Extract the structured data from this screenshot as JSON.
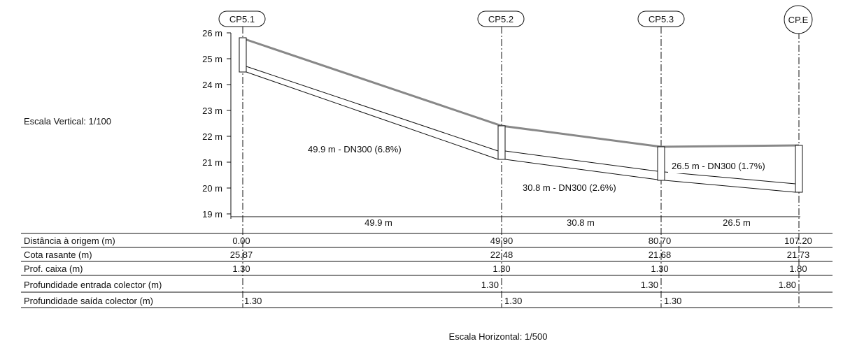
{
  "scale_vertical": "Escala Vertical: 1/100",
  "scale_horizontal": "Escala Horizontal: 1/500",
  "y_axis_ticks": [
    "26 m",
    "25 m",
    "24 m",
    "23 m",
    "22 m",
    "21 m",
    "20 m",
    "19 m"
  ],
  "nodes": [
    {
      "id": "CP5.1",
      "distance": 0.0,
      "ground": 25.87,
      "box_depth": 1.3
    },
    {
      "id": "CP5.2",
      "distance": 49.9,
      "ground": 22.48,
      "box_depth": 1.3
    },
    {
      "id": "CP5.3",
      "distance": 80.7,
      "ground": 21.68,
      "box_depth": 1.3
    },
    {
      "id": "CP.E",
      "distance": 107.2,
      "ground": 21.73,
      "box_depth": 1.8
    }
  ],
  "segments": [
    {
      "label": "49.9 m - DN300 (6.8%)",
      "span": "49.9 m"
    },
    {
      "label": "30.8 m - DN300 (2.6%)",
      "span": "30.8 m"
    },
    {
      "label": "26.5 m - DN300 (1.7%)",
      "span": "26.5 m"
    }
  ],
  "table": {
    "rows": [
      {
        "label": "Distância à origem (m)",
        "values": [
          "0.00",
          "49.90",
          "80.70",
          "107.20"
        ]
      },
      {
        "label": "Cota rasante (m)",
        "values": [
          "25.87",
          "22.48",
          "21.68",
          "21.73"
        ]
      },
      {
        "label": "Prof. caixa (m)",
        "values": [
          "1.30",
          "1.30",
          "1.30",
          "1.80"
        ]
      },
      {
        "label": "Profundidade entrada colector (m)",
        "values": [
          "",
          "1.30",
          "1.30",
          "1.80"
        ]
      },
      {
        "label": "Profundidade saída colector (m)",
        "values": [
          "1.30",
          "1.30",
          "1.30",
          ""
        ]
      }
    ]
  }
}
